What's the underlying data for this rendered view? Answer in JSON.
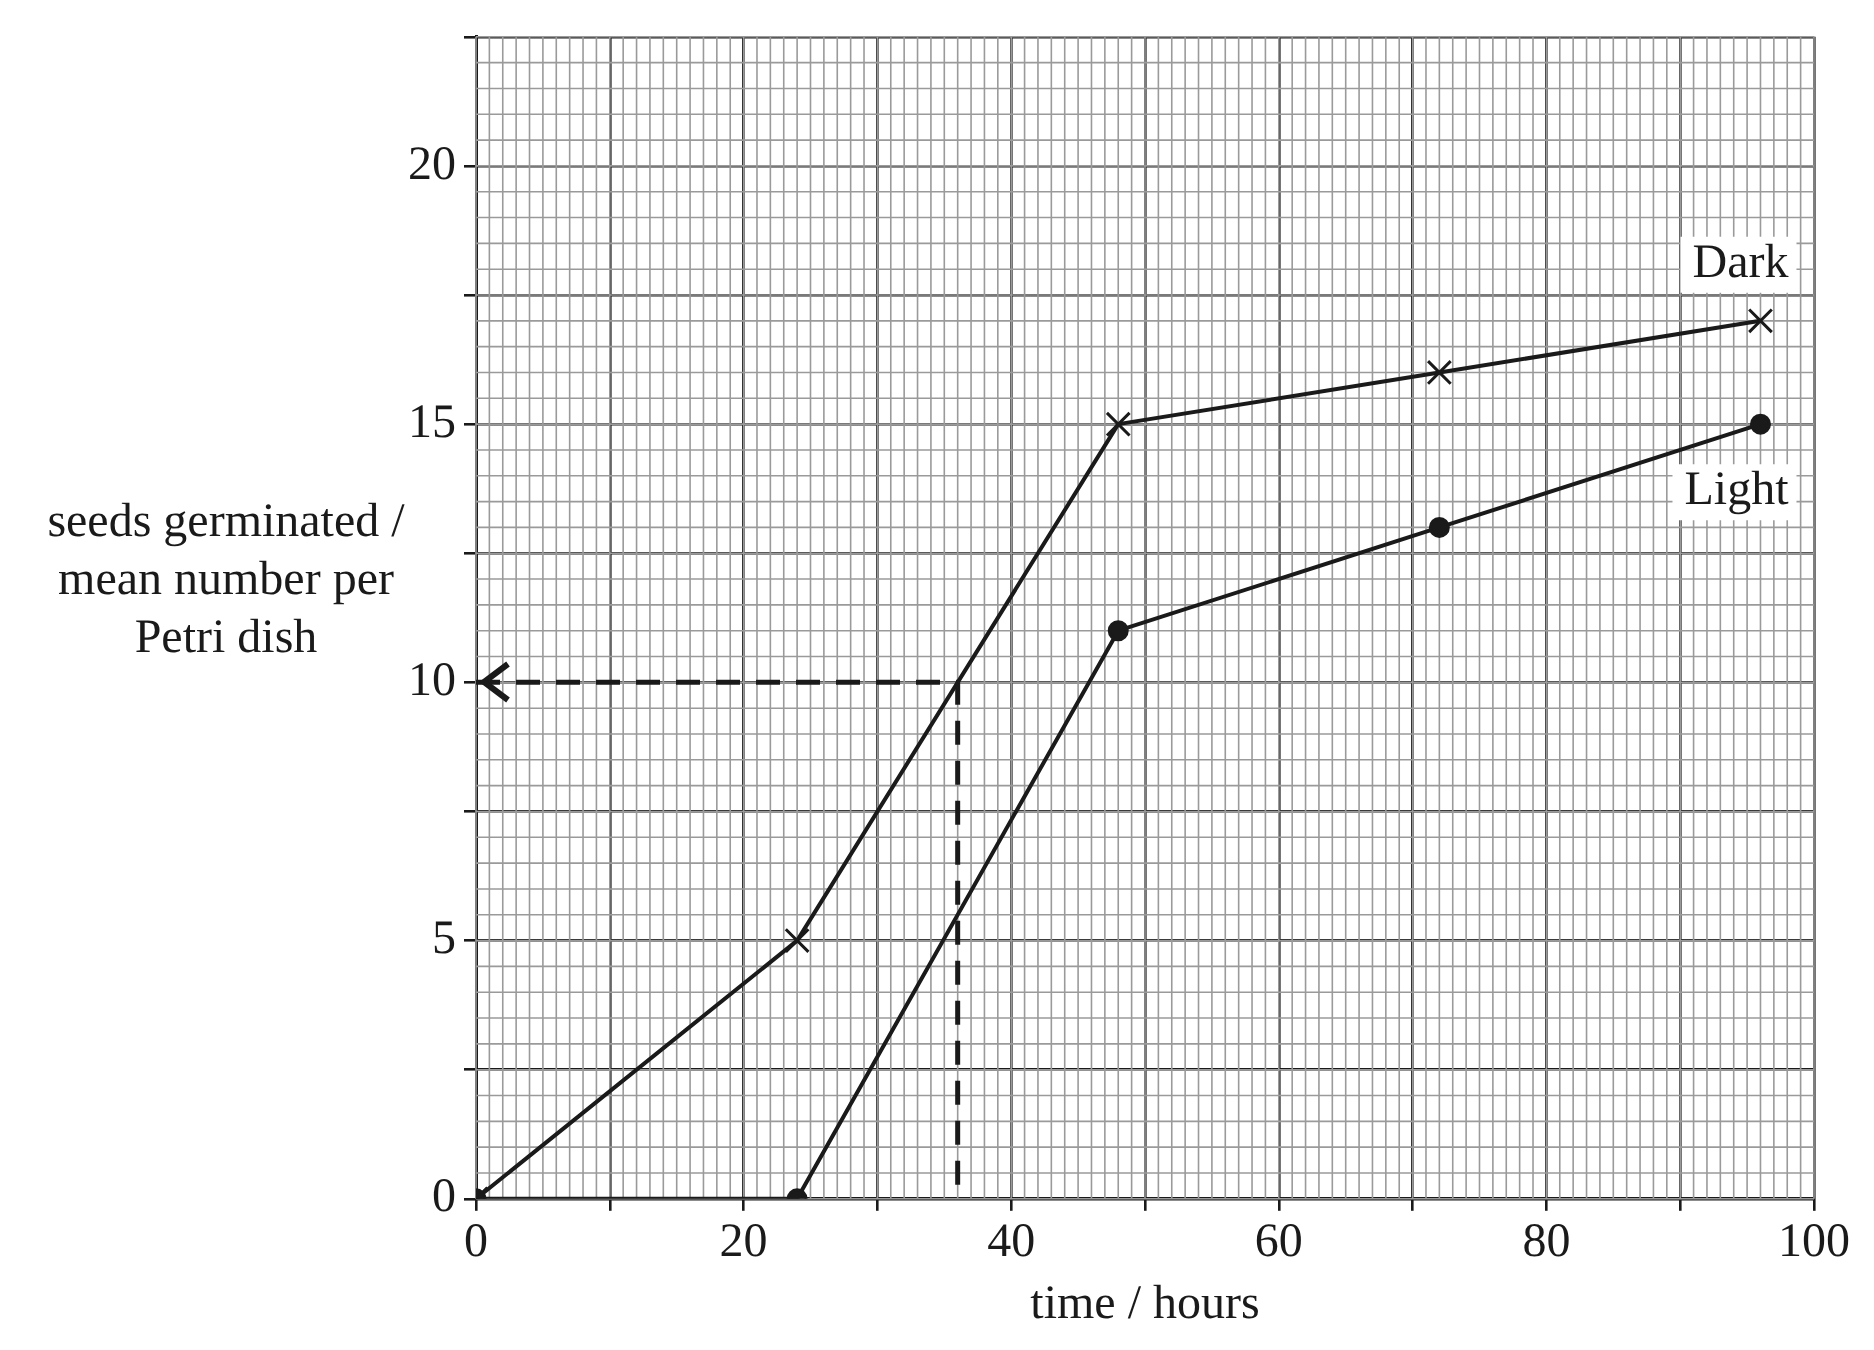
{
  "chart_data": {
    "type": "line",
    "xlabel": "time / hours",
    "ylabel": "seeds germinated / mean number per Petri dish",
    "series": [
      {
        "name": "Dark",
        "color": "#1a1a1a",
        "marker": "cross",
        "x": [
          0,
          24,
          48,
          72,
          96
        ],
        "values": [
          0,
          5,
          15,
          16,
          17
        ]
      },
      {
        "name": "Light",
        "color": "#1a1a1a",
        "marker": "circle",
        "x": [
          0,
          24,
          48,
          72,
          96
        ],
        "values": [
          0,
          0,
          11,
          13,
          15
        ]
      },
      {
        "color": "#1a1a1a",
        "marker": "none",
        "line_style": "dashed",
        "x": [
          0,
          36,
          36
        ],
        "values": [
          10,
          10,
          0
        ]
      }
    ],
    "xlim": [
      0,
      100
    ],
    "xticks": [
      0,
      {
        "value": 10,
        "label": null
      },
      20,
      {
        "value": 30,
        "label": null
      },
      40,
      {
        "value": 50,
        "label": null
      },
      60,
      {
        "value": 70,
        "label": null
      },
      80,
      {
        "value": 90,
        "label": null
      },
      100
    ],
    "ylim": [
      0,
      22.5
    ],
    "yticks": [
      0,
      {
        "value": 2.5,
        "label": null
      },
      5,
      {
        "value": 7.5,
        "label": null
      },
      10,
      {
        "value": 12.5,
        "label": null
      },
      15,
      {
        "value": 17.5,
        "label": null
      },
      20,
      {
        "value": 22.5,
        "label": null
      }
    ],
    "grid": true,
    "legend": false
  }
}
